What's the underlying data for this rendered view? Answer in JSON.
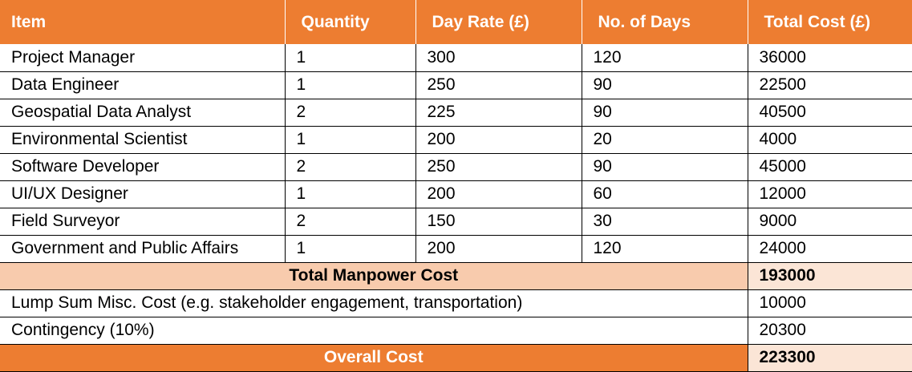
{
  "table": {
    "headers": [
      "Item",
      "Quantity",
      "Day Rate (£)",
      "No. of Days",
      "Total Cost (£)"
    ],
    "rows": [
      [
        "Project Manager",
        "1",
        "300",
        "120",
        "36000"
      ],
      [
        "Data Engineer",
        "1",
        "250",
        "90",
        "22500"
      ],
      [
        "Geospatial Data Analyst",
        "2",
        "225",
        "90",
        "40500"
      ],
      [
        "Environmental Scientist",
        "1",
        "200",
        "20",
        "4000"
      ],
      [
        "Software Developer",
        "2",
        "250",
        "90",
        "45000"
      ],
      [
        "UI/UX Designer",
        "1",
        "200",
        "60",
        "12000"
      ],
      [
        "Field Surveyor",
        "2",
        "150",
        "30",
        "9000"
      ],
      [
        "Government and Public Affairs",
        "1",
        "200",
        "120",
        "24000"
      ]
    ],
    "manpower_total": {
      "label": "Total Manpower Cost",
      "value": "193000"
    },
    "lump_sum": {
      "label": "Lump Sum Misc. Cost (e.g. stakeholder engagement, transportation)",
      "value": "10000"
    },
    "contingency": {
      "label": "Contingency (10%)",
      "value": "20300"
    },
    "overall": {
      "label": "Overall Cost",
      "value": "223300"
    }
  },
  "colors": {
    "header_bg": "#ed7d31",
    "header_text": "#ffffff",
    "subtotal_label_bg": "#f8cbad",
    "subtotal_value_bg": "#fbe5d6",
    "overall_label_bg": "#ed7d31"
  }
}
